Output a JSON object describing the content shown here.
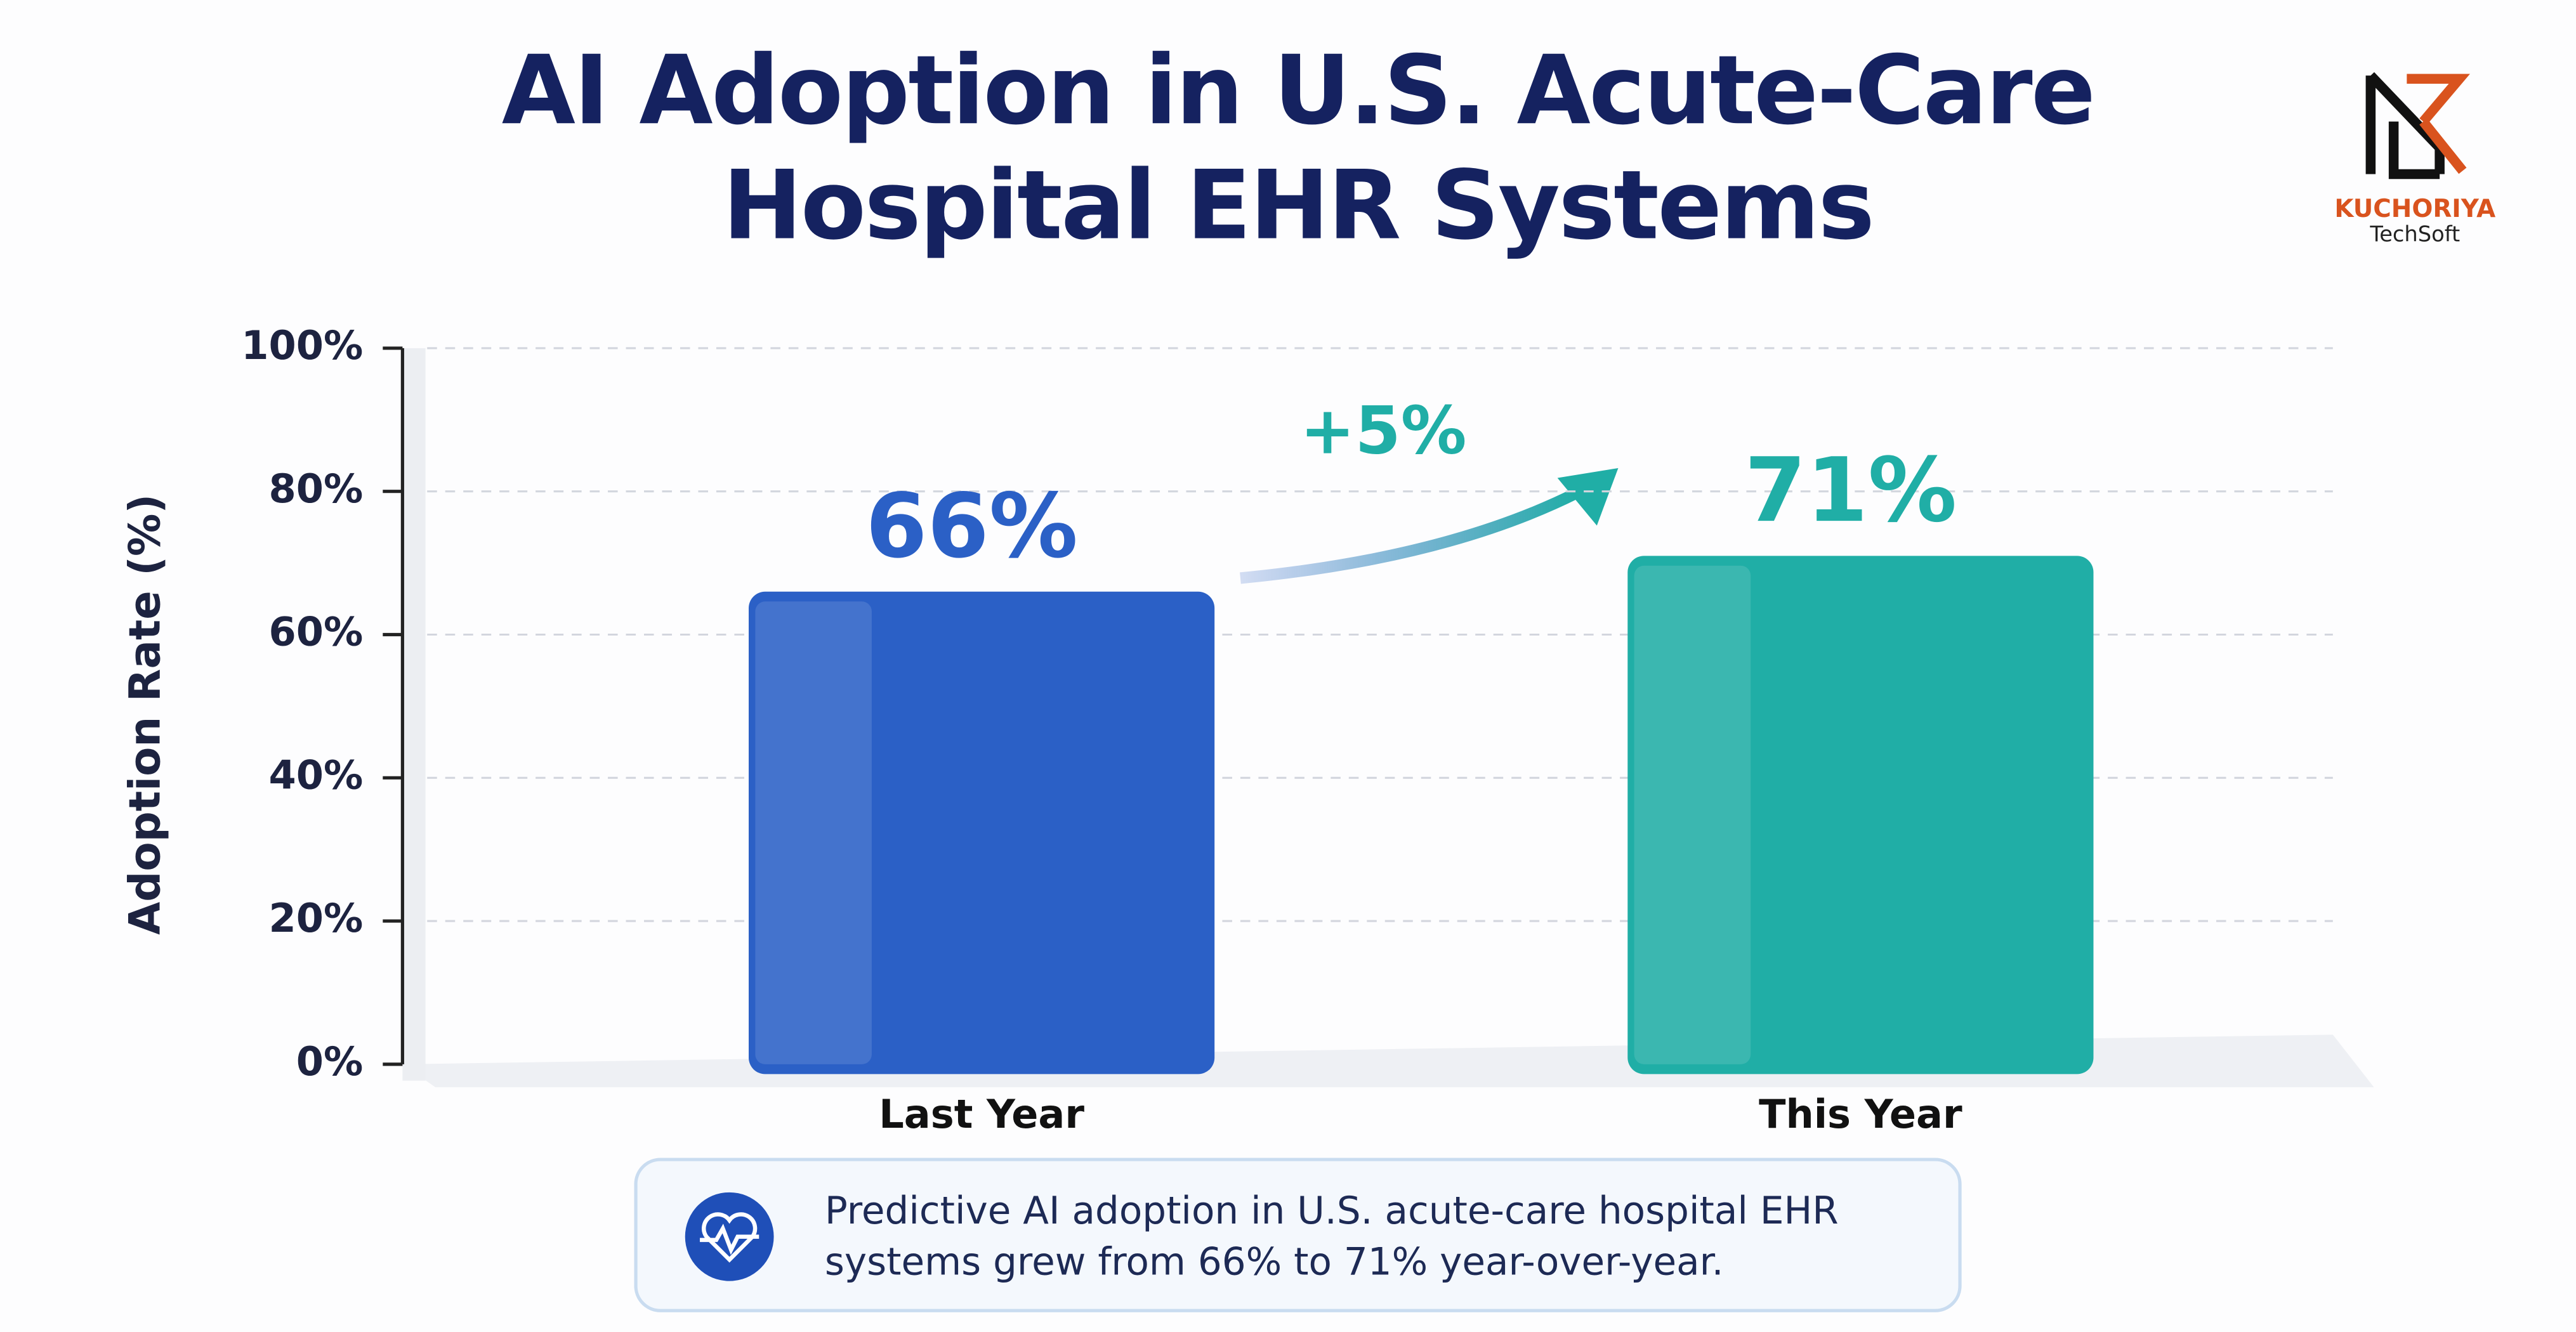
{
  "title": "AI Adoption in U.S. Acute-Care Hospital EHR Systems",
  "logo": {
    "name": "KUCHORIYA",
    "subtitle": "TechSoft"
  },
  "chart_data": {
    "type": "bar",
    "categories": [
      "Last Year",
      "This Year"
    ],
    "series": [
      {
        "name": "Adoption Rate",
        "colors": [
          "#2b60c6",
          "#20aea6"
        ],
        "values": [
          66,
          71
        ],
        "value_labels": [
          "66%",
          "71%"
        ]
      }
    ],
    "ylabel": "Adoption Rate (%)",
    "annotation": "+5%",
    "ylim": [
      0,
      100
    ],
    "yticks": [
      {
        "value": 0,
        "label": "0%"
      },
      {
        "value": 20,
        "label": "20%"
      },
      {
        "value": 40,
        "label": "40%"
      },
      {
        "value": 60,
        "label": "60%"
      },
      {
        "value": 80,
        "label": "80%"
      },
      {
        "value": 100,
        "label": "100%"
      }
    ],
    "grid": true
  },
  "caption": "Predictive AI adoption in U.S. acute-care hospital EHR systems grew from 66% to 71% year-over-year."
}
